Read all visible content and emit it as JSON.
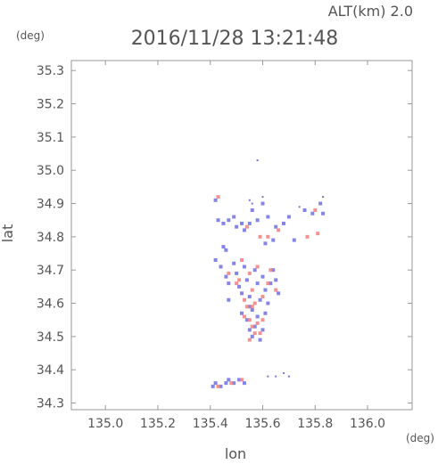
{
  "chart_data": {
    "type": "scatter",
    "title": "2016/11/28 13:21:48",
    "altitude_label": "ALT(km) 2.0",
    "xlabel": "lon",
    "ylabel": "lat",
    "x_unit": "(deg)",
    "y_unit": "(deg)",
    "xlim": [
      134.87,
      136.17
    ],
    "ylim": [
      34.28,
      35.33
    ],
    "x_ticks": [
      {
        "v": 135.0,
        "t": "135.0"
      },
      {
        "v": 135.2,
        "t": "135.2"
      },
      {
        "v": 135.4,
        "t": "135.4"
      },
      {
        "v": 135.6,
        "t": "135.6"
      },
      {
        "v": 135.8,
        "t": "135.8"
      },
      {
        "v": 136.0,
        "t": "136.0"
      }
    ],
    "y_ticks": [
      {
        "v": 34.3,
        "t": "34.3"
      },
      {
        "v": 34.4,
        "t": "34.4"
      },
      {
        "v": 34.5,
        "t": "34.5"
      },
      {
        "v": 34.6,
        "t": "34.6"
      },
      {
        "v": 34.7,
        "t": "34.7"
      },
      {
        "v": 34.8,
        "t": "34.8"
      },
      {
        "v": 34.9,
        "t": "34.9"
      },
      {
        "v": 35.0,
        "t": "35.0"
      },
      {
        "v": 35.1,
        "t": "35.1"
      },
      {
        "v": 35.2,
        "t": "35.2"
      },
      {
        "v": 35.3,
        "t": "35.3"
      }
    ],
    "colors": {
      "positive": "#f08080",
      "negative": "#7070e0",
      "frame": "#999999",
      "text": "#555555"
    },
    "series": [
      {
        "color_key": "negative",
        "points": [
          [
            135.42,
            34.91
          ],
          [
            135.43,
            34.85
          ],
          [
            135.45,
            34.84
          ],
          [
            135.47,
            34.85
          ],
          [
            135.49,
            34.86
          ],
          [
            135.5,
            34.83
          ],
          [
            135.52,
            34.84
          ],
          [
            135.53,
            34.82
          ],
          [
            135.55,
            34.84
          ],
          [
            135.56,
            34.88
          ],
          [
            135.58,
            34.85
          ],
          [
            135.6,
            34.9
          ],
          [
            135.62,
            34.86
          ],
          [
            135.65,
            34.83
          ],
          [
            135.68,
            34.84
          ],
          [
            135.7,
            34.86
          ],
          [
            135.72,
            34.79
          ],
          [
            135.76,
            34.88
          ],
          [
            135.79,
            34.87
          ],
          [
            135.82,
            34.9
          ],
          [
            135.83,
            34.87
          ],
          [
            135.42,
            34.73
          ],
          [
            135.44,
            34.71
          ],
          [
            135.46,
            34.68
          ],
          [
            135.47,
            34.66
          ],
          [
            135.49,
            34.72
          ],
          [
            135.5,
            34.69
          ],
          [
            135.51,
            34.65
          ],
          [
            135.52,
            34.63
          ],
          [
            135.53,
            34.71
          ],
          [
            135.54,
            34.67
          ],
          [
            135.55,
            34.62
          ],
          [
            135.56,
            34.58
          ],
          [
            135.57,
            34.7
          ],
          [
            135.58,
            34.66
          ],
          [
            135.59,
            34.61
          ],
          [
            135.6,
            34.68
          ],
          [
            135.61,
            34.64
          ],
          [
            135.62,
            34.6
          ],
          [
            135.63,
            34.66
          ],
          [
            135.64,
            34.7
          ],
          [
            135.65,
            34.67
          ],
          [
            135.66,
            34.63
          ],
          [
            135.52,
            34.57
          ],
          [
            135.54,
            34.55
          ],
          [
            135.55,
            34.52
          ],
          [
            135.56,
            34.5
          ],
          [
            135.57,
            34.53
          ],
          [
            135.58,
            34.56
          ],
          [
            135.59,
            34.49
          ],
          [
            135.6,
            34.52
          ],
          [
            135.55,
            34.59
          ],
          [
            135.61,
            34.57
          ],
          [
            135.45,
            34.77
          ],
          [
            135.46,
            34.76
          ],
          [
            135.61,
            34.78
          ],
          [
            135.64,
            34.79
          ],
          [
            135.47,
            34.61
          ],
          [
            135.41,
            34.35
          ],
          [
            135.42,
            34.36
          ],
          [
            135.44,
            34.35
          ],
          [
            135.46,
            34.36
          ],
          [
            135.47,
            34.37
          ],
          [
            135.49,
            34.36
          ],
          [
            135.51,
            34.37
          ],
          [
            135.53,
            34.36
          ]
        ]
      },
      {
        "color_key": "positive",
        "points": [
          [
            135.43,
            34.92
          ],
          [
            135.54,
            34.83
          ],
          [
            135.59,
            34.8
          ],
          [
            135.62,
            34.8
          ],
          [
            135.66,
            34.82
          ],
          [
            135.8,
            34.88
          ],
          [
            135.81,
            34.81
          ],
          [
            135.77,
            34.8
          ],
          [
            135.47,
            34.69
          ],
          [
            135.5,
            34.66
          ],
          [
            135.52,
            34.73
          ],
          [
            135.53,
            34.61
          ],
          [
            135.55,
            34.69
          ],
          [
            135.56,
            34.64
          ],
          [
            135.57,
            34.6
          ],
          [
            135.58,
            34.71
          ],
          [
            135.6,
            34.62
          ],
          [
            135.62,
            34.66
          ],
          [
            135.63,
            34.7
          ],
          [
            135.65,
            34.64
          ],
          [
            135.51,
            34.67
          ],
          [
            135.54,
            34.59
          ],
          [
            135.53,
            34.56
          ],
          [
            135.55,
            34.55
          ],
          [
            135.56,
            34.53
          ],
          [
            135.57,
            34.51
          ],
          [
            135.58,
            34.54
          ],
          [
            135.59,
            34.51
          ],
          [
            135.6,
            34.55
          ],
          [
            135.55,
            34.49
          ],
          [
            135.56,
            34.59
          ],
          [
            135.43,
            34.35
          ],
          [
            135.48,
            34.36
          ],
          [
            135.52,
            34.37
          ]
        ]
      },
      {
        "color_key": "sparse",
        "points": [
          [
            135.58,
            35.03
          ],
          [
            135.56,
            34.9
          ],
          [
            135.55,
            34.91
          ],
          [
            135.6,
            34.92
          ],
          [
            135.62,
            34.38
          ],
          [
            135.65,
            34.38
          ],
          [
            135.68,
            34.39
          ],
          [
            135.7,
            34.38
          ],
          [
            135.74,
            34.89
          ],
          [
            135.83,
            34.92
          ]
        ]
      }
    ]
  }
}
